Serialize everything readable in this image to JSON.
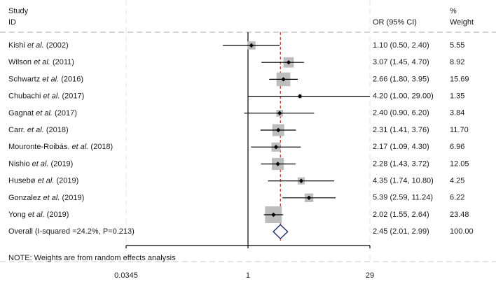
{
  "chart_data": {
    "type": "forest",
    "header": {
      "study_line1": "Study",
      "study_line2": "ID",
      "or_label": "OR (95% CI)",
      "weight_line1": "%",
      "weight_line2": "Weight"
    },
    "studies": [
      {
        "pre": "Kishi ",
        "em": "et al.",
        "post": " (2002)",
        "or": 1.1,
        "lo": 0.5,
        "hi": 2.4,
        "or_text": "1.10 (0.50, 2.40)",
        "weight": 5.55,
        "weight_text": "5.55"
      },
      {
        "pre": "Wilson ",
        "em": "et al.",
        "post": " (2011)",
        "or": 3.07,
        "lo": 1.45,
        "hi": 4.7,
        "or_text": "3.07 (1.45, 4.70)",
        "weight": 8.92,
        "weight_text": "8.92"
      },
      {
        "pre": "Schwartz ",
        "em": "et al.",
        "post": " (2016)",
        "or": 2.66,
        "lo": 1.8,
        "hi": 3.95,
        "or_text": "2.66 (1.80, 3.95)",
        "weight": 15.69,
        "weight_text": "15.69"
      },
      {
        "pre": "Chubachi ",
        "em": "et al.",
        "post": " (2017)",
        "or": 4.2,
        "lo": 1.0,
        "hi": 29.0,
        "or_text": "4.20 (1.00, 29.00)",
        "weight": 1.35,
        "weight_text": "1.35"
      },
      {
        "pre": "Gagnat ",
        "em": "et al.",
        "post": " (2017)",
        "or": 2.4,
        "lo": 0.9,
        "hi": 6.2,
        "or_text": "2.40 (0.90, 6.20)",
        "weight": 3.84,
        "weight_text": "3.84"
      },
      {
        "pre": "Carr. ",
        "em": "et al.",
        "post": " (2018)",
        "or": 2.31,
        "lo": 1.41,
        "hi": 3.76,
        "or_text": "2.31 (1.41, 3.76)",
        "weight": 11.7,
        "weight_text": "11.70"
      },
      {
        "pre": "Mouronte-Roibás. ",
        "em": "et al.",
        "post": " (2018)",
        "or": 2.17,
        "lo": 1.09,
        "hi": 4.3,
        "or_text": "2.17 (1.09, 4.30)",
        "weight": 6.96,
        "weight_text": "6.96"
      },
      {
        "pre": "Nishio ",
        "em": "et al.",
        "post": " (2019)",
        "or": 2.28,
        "lo": 1.43,
        "hi": 3.72,
        "or_text": "2.28 (1.43, 3.72)",
        "weight": 12.05,
        "weight_text": "12.05"
      },
      {
        "pre": "Husebø ",
        "em": "et al.",
        "post": " (2019)",
        "or": 4.35,
        "lo": 1.74,
        "hi": 10.8,
        "or_text": "4.35 (1.74, 10.80)",
        "weight": 4.25,
        "weight_text": "4.25"
      },
      {
        "pre": "Gonzalez ",
        "em": "et al.",
        "post": " (2019)",
        "or": 5.39,
        "lo": 2.59,
        "hi": 11.24,
        "or_text": "5.39 (2.59, 11.24)",
        "weight": 6.22,
        "weight_text": "6.22"
      },
      {
        "pre": "Yong ",
        "em": "et al.",
        "post": " (2019)",
        "or": 2.02,
        "lo": 1.55,
        "hi": 2.64,
        "or_text": "2.02 (1.55, 2.64)",
        "weight": 23.48,
        "weight_text": "23.48"
      }
    ],
    "overall": {
      "label": "Overall  (I-squared =24.2%, P=0.213)",
      "or": 2.45,
      "lo": 2.01,
      "hi": 2.99,
      "or_text": "2.45 (2.01, 2.99)",
      "weight_text": "100.00"
    },
    "note": "NOTE: Weights are from random effects analysis",
    "x_scale": "log",
    "x_range": [
      0.0345,
      29
    ],
    "x_ticks": [
      {
        "value": 0.0345,
        "label": "0.0345"
      },
      {
        "value": 1,
        "label": "1"
      },
      {
        "value": 29,
        "label": "29"
      }
    ],
    "null_line": 1,
    "colors": {
      "box": "#bdbdbd",
      "line": "#000000",
      "pooled_line": "#c0392b",
      "diamond": "#1f2a6b",
      "dash": "#c8c8c8"
    }
  }
}
